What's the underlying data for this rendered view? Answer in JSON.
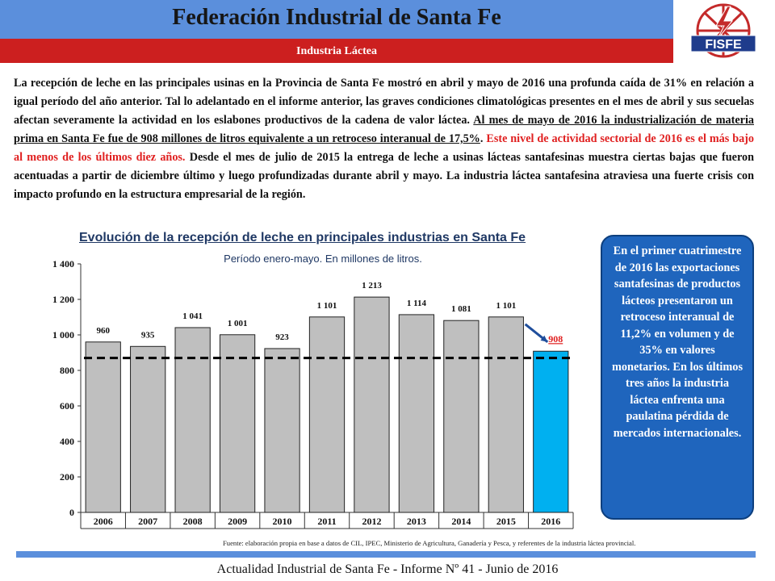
{
  "header": {
    "title": "Federación Industrial de Santa Fe",
    "subtitle": "Industria Láctea",
    "logo_text": "FISFE"
  },
  "intro": {
    "p1": "La recepción de leche en las principales usinas en la Provincia de Santa Fe mostró en abril y mayo de 2016 una profunda caída de 31% en relación a igual período del año anterior. Tal lo adelantado en el informe anterior, las graves condiciones climatológicas presentes en el mes de abril y sus secuelas afectan severamente la actividad en los eslabones productivos de la cadena de valor láctea. ",
    "underlined": "Al mes de mayo de 2016 la industrialización de materia prima en Santa Fe fue de 908 millones de litros equivalente a un retroceso interanual de 17,5%",
    "period": ". ",
    "red": "Este nivel de actividad sectorial de 2016 es el más bajo al menos de los últimos diez años.",
    "p2": " Desde el mes de julio de 2015 la entrega de leche a usinas lácteas santafesinas muestra ciertas bajas que fueron acentuadas a partir de diciembre último y luego profundizadas durante abril y mayo. La industria láctea santafesina atraviesa una fuerte crisis con impacto profundo en la estructura empresarial de la región."
  },
  "chart_title": "Evolución de la recepción de leche  en principales industrias en Santa Fe",
  "chart_subtitle": "Período enero-mayo. En millones de litros.",
  "chart_data": {
    "type": "bar",
    "categories": [
      "2006",
      "2007",
      "2008",
      "2009",
      "2010",
      "2011",
      "2012",
      "2013",
      "2014",
      "2015",
      "2016"
    ],
    "values": [
      960,
      935,
      1041,
      1001,
      923,
      1101,
      1213,
      1114,
      1081,
      1101,
      908
    ],
    "value_labels": [
      "960",
      "935",
      "1 041",
      "1 001",
      "923",
      "1 101",
      "1 213",
      "1 114",
      "1 081",
      "1 101",
      "908"
    ],
    "yticks": [
      "0",
      "200",
      "400",
      "600",
      "800",
      "1 000",
      "1 200",
      "1 400"
    ],
    "ylim": [
      0,
      1400
    ],
    "reference_line": 870,
    "bar_color": "#bfbfbf",
    "highlight_color": "#00b0f0",
    "highlight_label_color": "#e02020",
    "arrow_color": "#1f4e9c"
  },
  "side_box": {
    "text": "En el primer cuatrimestre de 2016 las exportaciones santafesinas de productos lácteos presentaron un retroceso interanual de 11,2% en volumen y de 35% en valores monetarios. En los últimos tres años la industria láctea enfrenta una paulatina pérdida de mercados internacionales."
  },
  "source": "Fuente: elaboración propia en base a datos de CIL, IPEC, Ministerio de Agricultura, Ganadería y Pesca, y referentes de la industria láctea provincial.",
  "footer": "Actualidad Industrial de Santa Fe - Informe Nº 41 - Junio de 2016"
}
